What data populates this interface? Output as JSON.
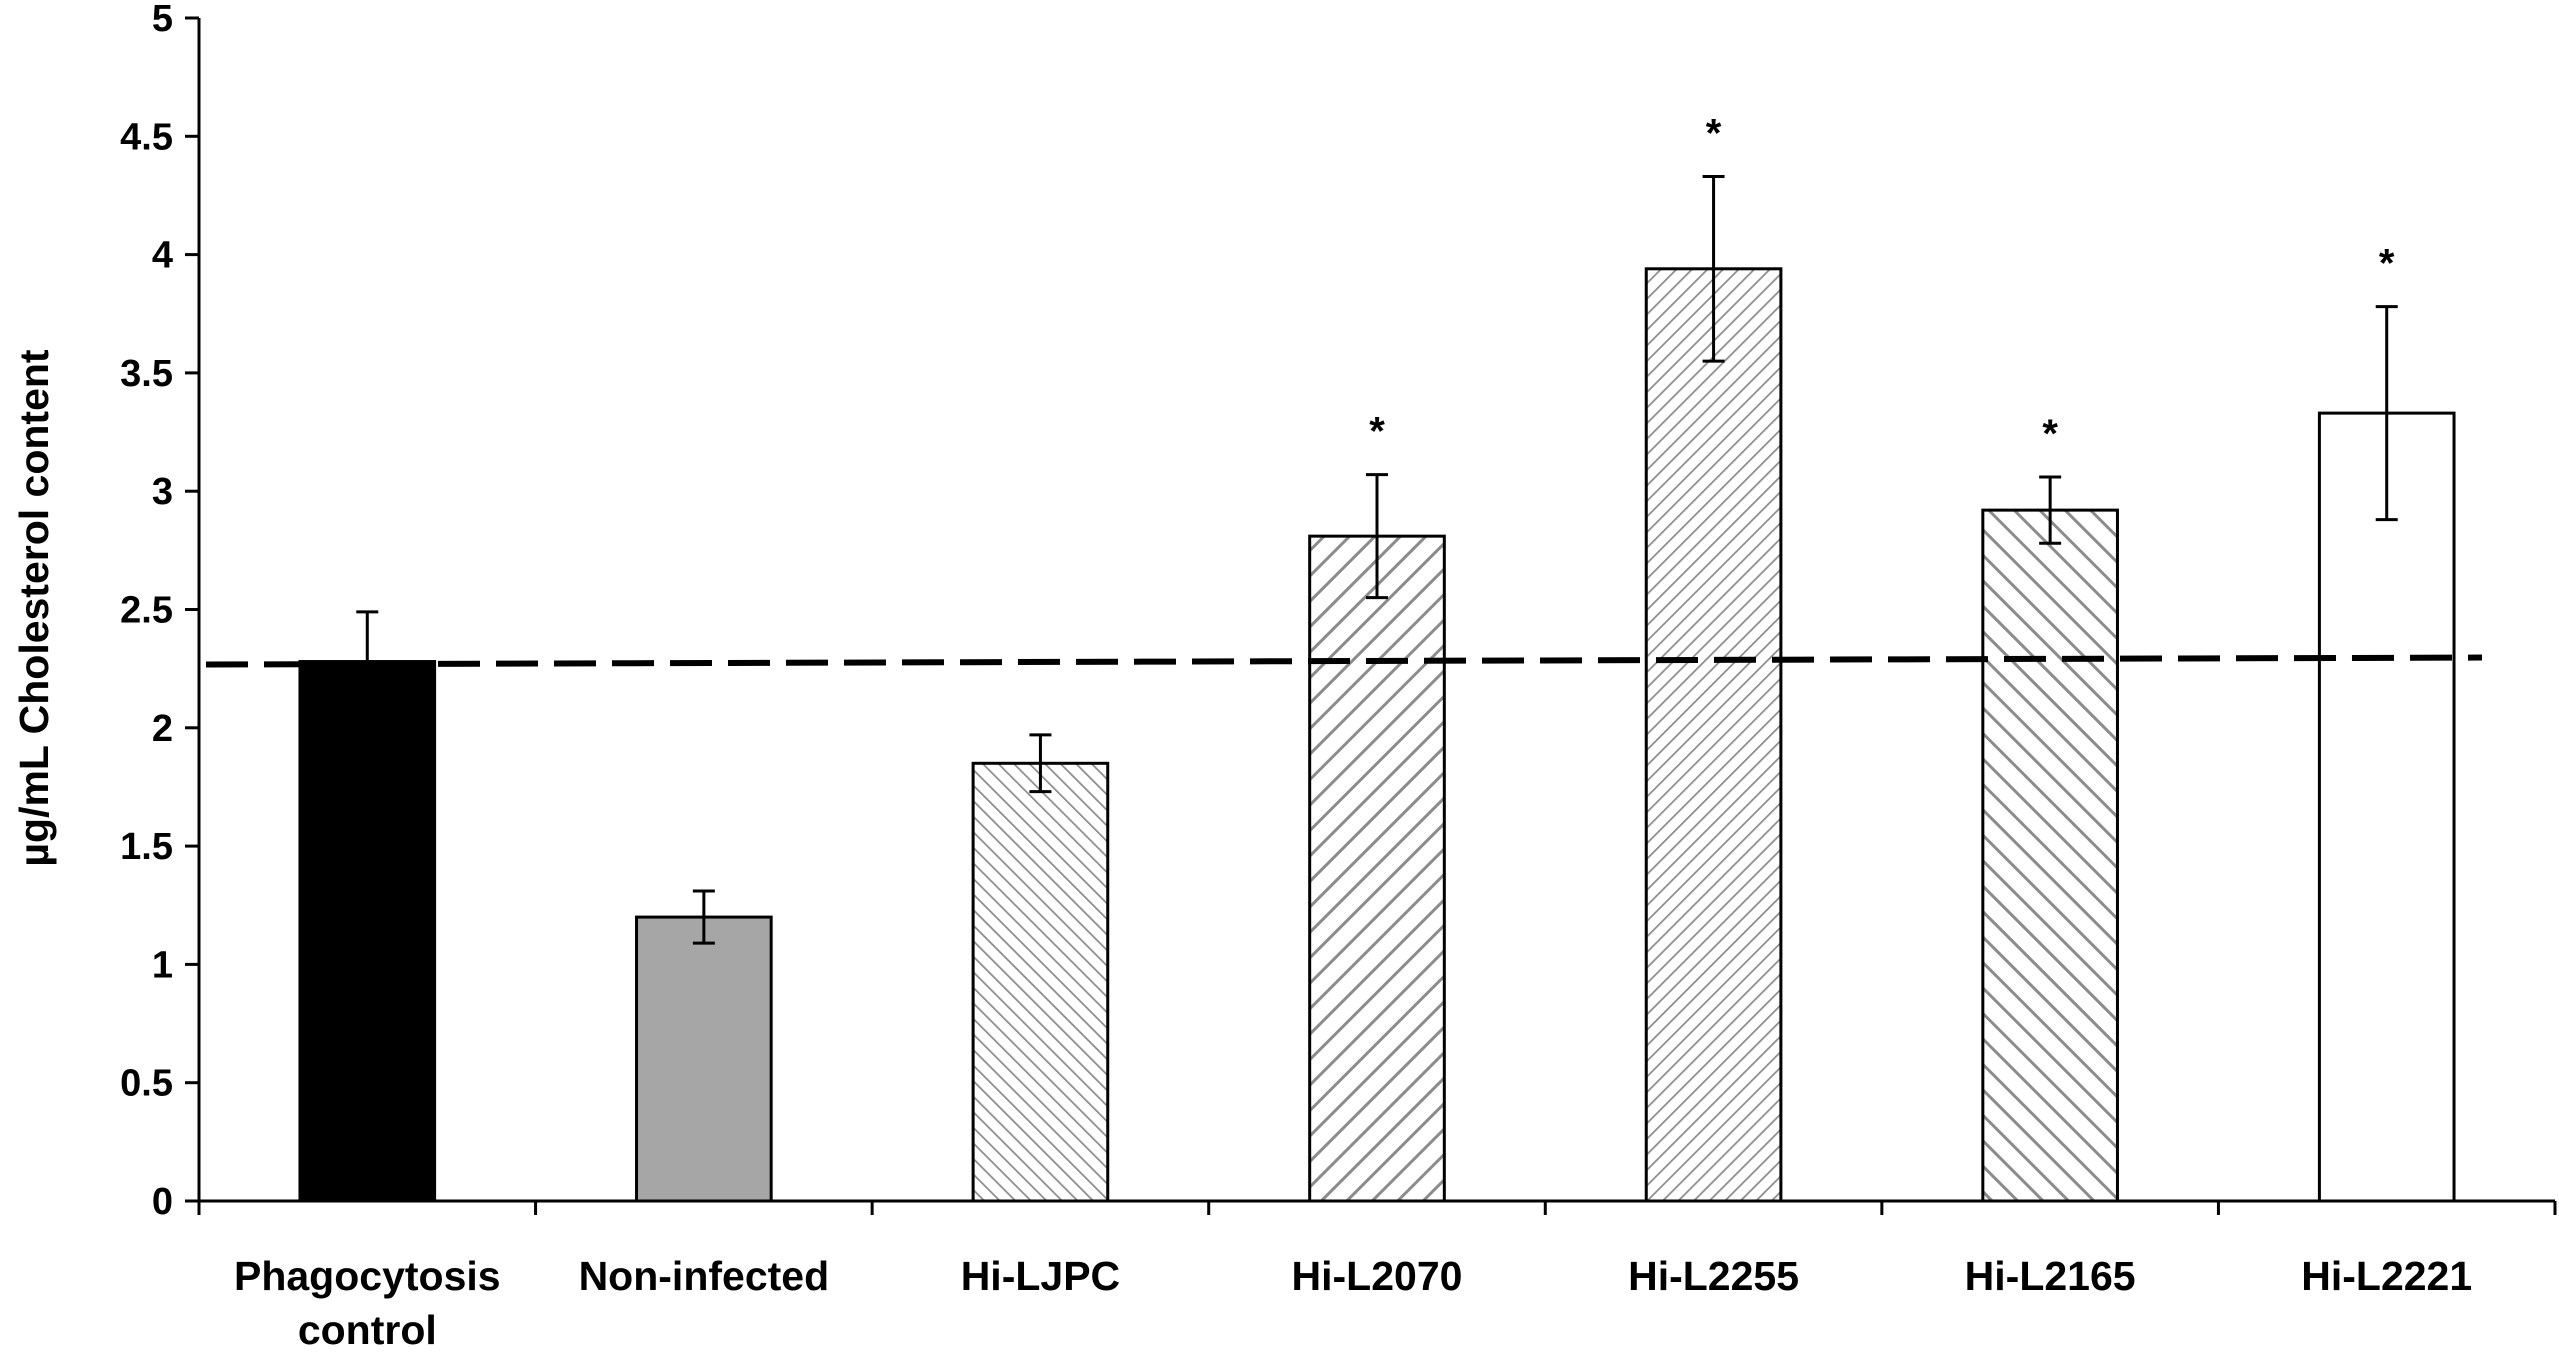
{
  "chart_data": {
    "type": "bar",
    "title": "",
    "xlabel": "",
    "ylabel": "µg/mL Cholesterol content",
    "ylim": [
      0,
      5
    ],
    "yticks": [
      "0",
      "0.5",
      "1",
      "1.5",
      "2",
      "2.5",
      "3",
      "3.5",
      "4",
      "4.5",
      "5"
    ],
    "categories": [
      [
        "Phagocytosis",
        "control"
      ],
      [
        "Non-infected"
      ],
      [
        "Hi-LJPC"
      ],
      [
        "Hi-L2070"
      ],
      [
        "Hi-L2255"
      ],
      [
        "Hi-L2165"
      ],
      [
        "Hi-L2221"
      ]
    ],
    "values": [
      2.28,
      1.2,
      1.85,
      2.81,
      3.94,
      2.92,
      3.33
    ],
    "errors": [
      0.21,
      0.11,
      0.12,
      0.26,
      0.39,
      0.14,
      0.45
    ],
    "significance": [
      "",
      "",
      "",
      "*",
      "*",
      "*",
      "*"
    ],
    "fills": [
      "solid-black",
      "solid-gray",
      "hatch-fine-backward",
      "hatch-wide-forward",
      "hatch-fine-forward",
      "hatch-wide-backward",
      "white"
    ],
    "colors": {
      "black": "#000000",
      "gray": "#a6a6a6",
      "hatch": "#8c8c8c",
      "white": "#ffffff"
    },
    "reference_line": {
      "value": 2.28,
      "style": "dashed"
    },
    "grid": false,
    "legend": "none"
  }
}
